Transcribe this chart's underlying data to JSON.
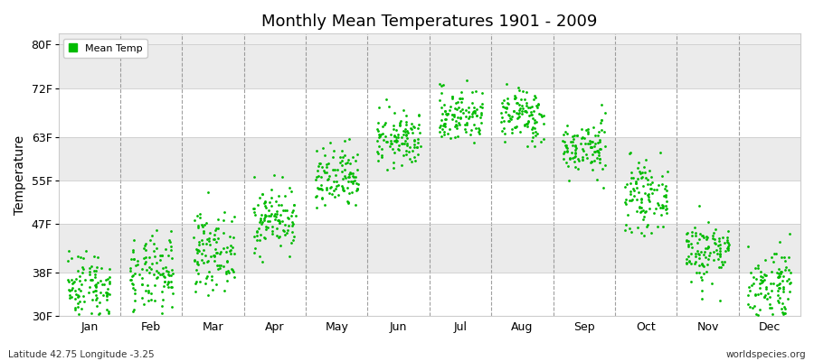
{
  "title": "Monthly Mean Temperatures 1901 - 2009",
  "ylabel": "Temperature",
  "bottom_left_text": "Latitude 42.75 Longitude -3.25",
  "bottom_right_text": "worldspecies.org",
  "legend_label": "Mean Temp",
  "dot_color": "#00bb00",
  "background_color": "#ffffff",
  "plot_bg_color": "#f0f0f0",
  "band_colors": [
    "#ffffff",
    "#ebebeb"
  ],
  "ylim": [
    30,
    82
  ],
  "yticks": [
    30,
    38,
    47,
    55,
    63,
    72,
    80
  ],
  "ytick_labels": [
    "30F",
    "38F",
    "47F",
    "55F",
    "63F",
    "72F",
    "80F"
  ],
  "months": [
    "Jan",
    "Feb",
    "Mar",
    "Apr",
    "May",
    "Jun",
    "Jul",
    "Aug",
    "Sep",
    "Oct",
    "Nov",
    "Dec"
  ],
  "n_years": 109,
  "monthly_mean_f": [
    35.5,
    37.5,
    42.0,
    48.0,
    55.0,
    62.5,
    67.0,
    67.0,
    61.0,
    52.0,
    42.0,
    36.0
  ],
  "monthly_std_f": [
    3.5,
    3.5,
    3.5,
    3.0,
    3.0,
    2.5,
    2.5,
    2.5,
    2.5,
    3.0,
    3.0,
    3.5
  ]
}
